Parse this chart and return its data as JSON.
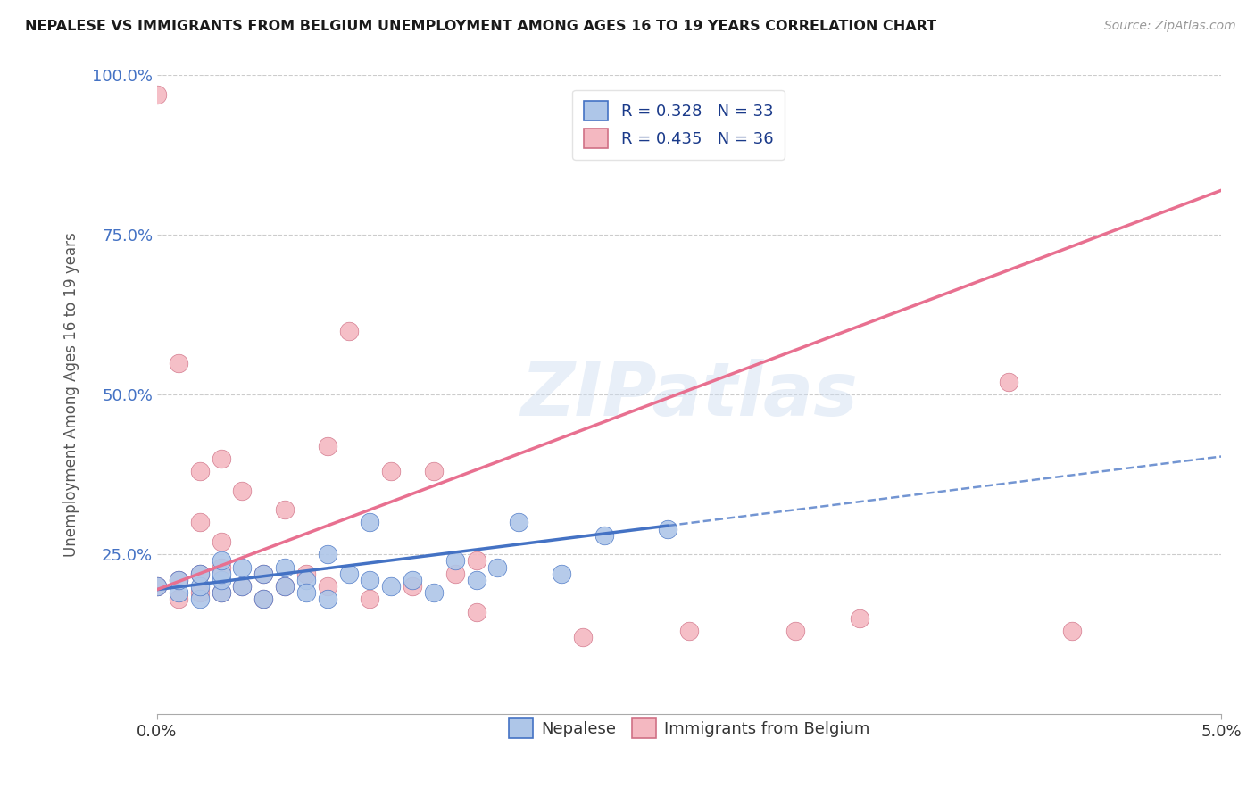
{
  "title": "NEPALESE VS IMMIGRANTS FROM BELGIUM UNEMPLOYMENT AMONG AGES 16 TO 19 YEARS CORRELATION CHART",
  "source": "Source: ZipAtlas.com",
  "ylabel": "Unemployment Among Ages 16 to 19 years",
  "xlim": [
    0.0,
    0.05
  ],
  "ylim": [
    0.0,
    1.0
  ],
  "xticks": [
    0.0,
    0.05
  ],
  "xtick_labels": [
    "0.0%",
    "5.0%"
  ],
  "yticks": [
    0.25,
    0.5,
    0.75,
    1.0
  ],
  "ytick_labels": [
    "25.0%",
    "50.0%",
    "75.0%",
    "100.0%"
  ],
  "legend1_label": "R = 0.328   N = 33",
  "legend2_label": "R = 0.435   N = 36",
  "legend1_color": "#aec6e8",
  "legend2_color": "#f4b8c1",
  "line1_color": "#4472C4",
  "line2_color": "#e87090",
  "watermark": "ZIPatlas",
  "nepalese_x": [
    0.0,
    0.001,
    0.001,
    0.002,
    0.002,
    0.002,
    0.003,
    0.003,
    0.003,
    0.003,
    0.004,
    0.004,
    0.005,
    0.005,
    0.006,
    0.006,
    0.007,
    0.007,
    0.008,
    0.008,
    0.009,
    0.01,
    0.01,
    0.011,
    0.012,
    0.013,
    0.014,
    0.015,
    0.016,
    0.017,
    0.019,
    0.021,
    0.024
  ],
  "nepalese_y": [
    0.2,
    0.19,
    0.21,
    0.18,
    0.2,
    0.22,
    0.19,
    0.21,
    0.22,
    0.24,
    0.2,
    0.23,
    0.18,
    0.22,
    0.2,
    0.23,
    0.21,
    0.19,
    0.18,
    0.25,
    0.22,
    0.21,
    0.3,
    0.2,
    0.21,
    0.19,
    0.24,
    0.21,
    0.23,
    0.3,
    0.22,
    0.28,
    0.29
  ],
  "belgium_x": [
    0.0,
    0.0,
    0.001,
    0.001,
    0.001,
    0.002,
    0.002,
    0.002,
    0.002,
    0.003,
    0.003,
    0.003,
    0.003,
    0.004,
    0.004,
    0.005,
    0.005,
    0.006,
    0.006,
    0.007,
    0.008,
    0.008,
    0.009,
    0.01,
    0.011,
    0.012,
    0.013,
    0.014,
    0.015,
    0.015,
    0.02,
    0.025,
    0.03,
    0.033,
    0.04,
    0.043
  ],
  "belgium_y": [
    0.2,
    0.97,
    0.18,
    0.21,
    0.55,
    0.19,
    0.22,
    0.3,
    0.38,
    0.19,
    0.23,
    0.27,
    0.4,
    0.2,
    0.35,
    0.18,
    0.22,
    0.2,
    0.32,
    0.22,
    0.2,
    0.42,
    0.6,
    0.18,
    0.38,
    0.2,
    0.38,
    0.22,
    0.24,
    0.16,
    0.12,
    0.13,
    0.13,
    0.15,
    0.52,
    0.13
  ],
  "nep_line_x0": 0.0,
  "nep_line_y0": 0.195,
  "nep_line_x1": 0.024,
  "nep_line_y1": 0.295,
  "bel_line_x0": 0.0,
  "bel_line_y0": 0.195,
  "bel_line_x1": 0.05,
  "bel_line_y1": 0.82
}
